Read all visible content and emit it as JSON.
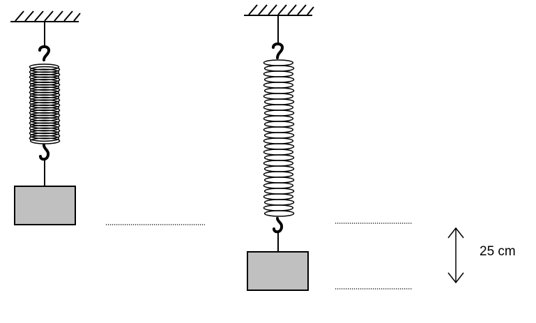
{
  "measurement": {
    "label": "25 cm"
  },
  "colors": {
    "stroke": "#000000",
    "mass_fill": "#c0c0c0",
    "background": "#ffffff"
  },
  "icons": {
    "ceiling": "hatched-ceiling-icon",
    "hook": "hook-icon",
    "spring": "coil-spring-icon",
    "mass": "weight-block-icon",
    "arrow": "double-headed-arrow-icon"
  }
}
